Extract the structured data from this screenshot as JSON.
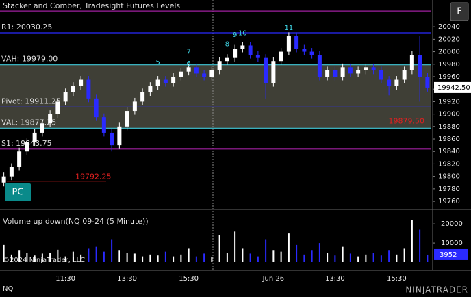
{
  "chart_data": {
    "type": "candlestick",
    "title": "Stacker and Comber, Tradesight Futures Levels",
    "instrument": "NQ",
    "panel_button": "PC",
    "corner_button": "F",
    "copyright": "©2024 NinjaTrader, LLC",
    "brand": "NINJATRADER",
    "categories": [
      null,
      null,
      null,
      null,
      null,
      null,
      null,
      null,
      "11:30",
      null,
      null,
      null,
      null,
      null,
      null,
      null,
      "13:30",
      null,
      null,
      null,
      null,
      null,
      null,
      null,
      "15:30",
      null,
      null,
      null,
      null,
      null,
      null,
      null,
      null,
      null,
      null,
      "Jun 26",
      null,
      null,
      null,
      null,
      null,
      null,
      null,
      "13:30",
      null,
      null,
      null,
      null,
      null,
      null,
      null,
      "15:30",
      null,
      null,
      null,
      null
    ],
    "open": [
      19790,
      19800,
      19815,
      19840,
      19855,
      19870,
      19885,
      19900,
      19920,
      19935,
      19945,
      19955,
      19925,
      19895,
      19870,
      19850,
      19880,
      19905,
      19920,
      19935,
      19945,
      19955,
      19950,
      19960,
      19968,
      19975,
      19965,
      19960,
      19970,
      19985,
      19990,
      20005,
      20010,
      19995,
      19990,
      19950,
      19985,
      20000,
      20025,
      20005,
      20000,
      19995,
      19960,
      19970,
      19960,
      19975,
      19965,
      19970,
      19975,
      19970,
      19955,
      19945,
      19955,
      19970,
      19995,
      19960
    ],
    "high": [
      19806,
      19821,
      19846,
      19861,
      19876,
      19891,
      19906,
      19926,
      19941,
      19951,
      19961,
      19961,
      19931,
      19901,
      19876,
      19886,
      19911,
      19926,
      19941,
      19951,
      19961,
      19961,
      19966,
      19974,
      19981,
      19981,
      19971,
      19976,
      19991,
      19996,
      20011,
      20016,
      20016,
      20001,
      19996,
      19991,
      20006,
      20031,
      20031,
      20011,
      20006,
      20001,
      19976,
      19976,
      19981,
      19981,
      19976,
      19981,
      19981,
      19976,
      19961,
      19961,
      19976,
      20001,
      20025,
      19966
    ],
    "low": [
      19784,
      19794,
      19809,
      19834,
      19849,
      19864,
      19879,
      19894,
      19914,
      19929,
      19939,
      19919,
      19889,
      19864,
      19840,
      19844,
      19874,
      19899,
      19914,
      19929,
      19939,
      19944,
      19944,
      19954,
      19962,
      19959,
      19954,
      19954,
      19964,
      19979,
      19984,
      19999,
      19989,
      19984,
      19925,
      19944,
      19979,
      19994,
      19999,
      19994,
      19989,
      19954,
      19954,
      19954,
      19954,
      19959,
      19959,
      19964,
      19964,
      19949,
      19930,
      19939,
      19949,
      19964,
      19920,
      19936
    ],
    "close": [
      19800,
      19815,
      19840,
      19855,
      19870,
      19885,
      19900,
      19920,
      19935,
      19945,
      19955,
      19925,
      19895,
      19870,
      19850,
      19880,
      19905,
      19920,
      19935,
      19945,
      19955,
      19950,
      19960,
      19968,
      19975,
      19965,
      19960,
      19970,
      19985,
      19990,
      20005,
      20010,
      19995,
      19990,
      19950,
      19985,
      20000,
      20025,
      20005,
      20000,
      19995,
      19960,
      19970,
      19960,
      19975,
      19965,
      19970,
      19975,
      19970,
      19955,
      19945,
      19955,
      19970,
      19995,
      19960,
      19942.5
    ],
    "up_color": "#ffffff",
    "down_color": "#2a2aff",
    "ylim": [
      19748,
      20083
    ],
    "yticks": [
      19760,
      19780,
      19800,
      19820,
      19840,
      19860,
      19880,
      19900,
      19920,
      19940,
      19960,
      19980,
      20000,
      20020,
      20040
    ],
    "last_price": {
      "value": 19942.5,
      "label": "19942.50"
    },
    "levels": [
      {
        "value": 20065.25,
        "color": "#a020a0"
      },
      {
        "label": "R1: 20030.25",
        "value": 20030.25,
        "color": "#2a2aff"
      },
      {
        "label": "VAH: 19979.00",
        "value": 19979,
        "color": "#40c8d8"
      },
      {
        "label": "Pivot: 19911.25",
        "value": 19911.25,
        "color": "#2a2aff"
      },
      {
        "label": "VAL: 19877.25",
        "value": 19877.25,
        "color": "#40c8d8"
      },
      {
        "label": "S1: 19843.75",
        "value": 19843.75,
        "color": "#a020a0"
      }
    ],
    "low_marker": {
      "label": "19792.25",
      "value": 19792.25,
      "color": "#e02020"
    },
    "high_marker": {
      "label": "19879.50",
      "value": 19879.5,
      "color": "#e02020"
    },
    "counts": [
      {
        "text": "5",
        "x": 20,
        "y": 19983
      },
      {
        "text": "6",
        "x": 24,
        "y": 19981
      },
      {
        "text": "7",
        "x": 24,
        "y": 20000
      },
      {
        "text": "8",
        "x": 29,
        "y": 20012
      },
      {
        "text": "9",
        "x": 30,
        "y": 20027
      },
      {
        "text": "10",
        "x": 31,
        "y": 20030
      },
      {
        "text": "11",
        "x": 37,
        "y": 20038
      }
    ],
    "volume": {
      "title": "Volume up down(NQ 09-24 (5 Minute))",
      "values": [
        9000,
        4000,
        6000,
        5000,
        3500,
        4500,
        5000,
        6500,
        3000,
        5500,
        4000,
        7000,
        8000,
        5500,
        12000,
        6000,
        5000,
        4500,
        3000,
        4000,
        3500,
        5500,
        3000,
        4000,
        7000,
        3000,
        4500,
        2500,
        14000,
        5000,
        16000,
        7000,
        4500,
        3000,
        12000,
        6000,
        5500,
        15000,
        9000,
        4000,
        6000,
        10000,
        5000,
        3500,
        8000,
        4500,
        3000,
        4000,
        5000,
        3500,
        6000,
        4000,
        7000,
        22000,
        17000,
        3952
      ],
      "ylim": [
        0,
        24000
      ],
      "yticks": [
        {
          "value": 10000,
          "label": "10000"
        },
        {
          "value": 20000,
          "label": "20000"
        }
      ],
      "last": {
        "value": 3952,
        "label": "3952"
      }
    }
  }
}
